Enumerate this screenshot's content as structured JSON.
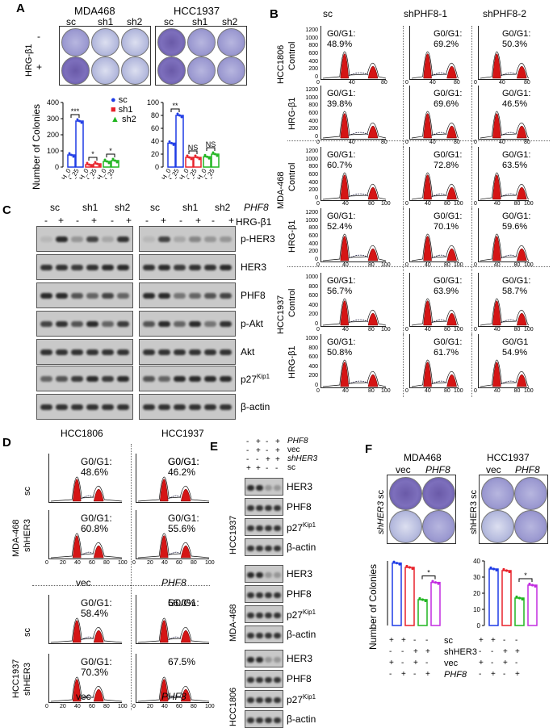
{
  "panels": {
    "A": "A",
    "B": "B",
    "C": "C",
    "D": "D",
    "E": "E",
    "F": "F"
  },
  "panelA": {
    "cell_lines": [
      "MDA468",
      "HCC1937"
    ],
    "columns": [
      "sc",
      "sh1",
      "sh2"
    ],
    "row_label": "HRG-β1",
    "row_signs": [
      "-",
      "+"
    ],
    "ylabel": "Number of Colonies",
    "legend": [
      "sc",
      "sh1",
      "sh2"
    ],
    "xticks": [
      "H_0",
      "H_25"
    ],
    "sig_left": [
      "***",
      "*",
      "*"
    ],
    "sig_right": [
      "**",
      "NS",
      "NS"
    ],
    "yticks_left": [
      "0",
      "100",
      "200",
      "300",
      "400"
    ],
    "yticks_right": [
      "0",
      "20",
      "40",
      "60",
      "80",
      "100"
    ],
    "colors": {
      "sc": "#1f3ce6",
      "sh1": "#e8222b",
      "sh2": "#21b521"
    }
  },
  "chart_data": [
    {
      "type": "bar",
      "title": "MDA468",
      "ylabel": "Number of Colonies",
      "ylim": [
        0,
        400
      ],
      "categories": [
        "H_0",
        "H_25"
      ],
      "series": [
        {
          "name": "sc",
          "values": [
            75,
            285
          ]
        },
        {
          "name": "sh1",
          "values": [
            15,
            20
          ]
        },
        {
          "name": "sh2",
          "values": [
            35,
            40
          ]
        }
      ]
    },
    {
      "type": "bar",
      "title": "HCC1937",
      "ylim": [
        0,
        100
      ],
      "categories": [
        "H_0",
        "H_25"
      ],
      "series": [
        {
          "name": "sc",
          "values": [
            37,
            80
          ]
        },
        {
          "name": "sh1",
          "values": [
            15,
            15
          ]
        },
        {
          "name": "sh2",
          "values": [
            16,
            20
          ]
        }
      ]
    },
    {
      "type": "bar",
      "title": "MDA468",
      "ylabel": "Number of Colonies",
      "ylim": [
        0,
        300
      ],
      "categories": [
        "sc vec",
        "sc PHF8",
        "shHER3 vec",
        "shHER3 PHF8"
      ],
      "values": [
        290,
        270,
        120,
        200
      ]
    },
    {
      "type": "bar",
      "title": "HCC1937",
      "ylim": [
        0,
        40
      ],
      "categories": [
        "sc vec",
        "sc PHF8",
        "shHER3 vec",
        "shHER3 PHF8"
      ],
      "values": [
        35,
        34,
        17,
        25
      ]
    }
  ],
  "panelB": {
    "cols": [
      "sc",
      "shPHF8-1",
      "shPHF8-2"
    ],
    "groups": [
      "HCC1806",
      "MDA-468",
      "HCC1937"
    ],
    "row_labels": [
      "Control",
      "HRG-β1"
    ],
    "values": [
      [
        "G0/G1:\n48.9%",
        "G0/G1:\n69.2%",
        "G0/G1:\n50.3%"
      ],
      [
        "G0/G1:\n39.8%",
        "G0/G1:\n69.6%",
        "G0/G1:\n46.5%"
      ],
      [
        "G0/G1:\n60.7%",
        "G0/G1:\n72.8%",
        "G0/G1:\n63.5%"
      ],
      [
        "G0/G1:\n52.4%",
        "G0/G1:\n70.1%",
        "G0/G1:\n59.6%"
      ],
      [
        "G0/G1:\n56.7%",
        "G0/G1:\n63.9%",
        "G0/G1:\n58.7%"
      ],
      [
        "G0/G1:\n50.8%",
        "G0/G1:\n61.7%",
        "G0/G1\n54.9%"
      ]
    ],
    "yticks_a": [
      "0",
      "200",
      "400",
      "600",
      "800",
      "1000",
      "1200"
    ],
    "xticks_a": [
      "0",
      "20",
      "40",
      "60",
      "80"
    ],
    "xticks_b": [
      "0",
      "20",
      "40",
      "60",
      "80",
      "100"
    ]
  },
  "panelC": {
    "cols": [
      "sc",
      "sh1",
      "sh2",
      "sc",
      "sh1",
      "sh2"
    ],
    "gene": "PHF8",
    "treat": "HRG-β1",
    "signs": [
      "-",
      "+",
      "-",
      "+",
      "-",
      "+"
    ],
    "proteins": [
      "p-HER3",
      "HER3",
      "PHF8",
      "p-Akt",
      "Akt",
      "p27Kip1",
      "β-actin"
    ],
    "cells": [
      "HCC1806",
      "HCC1937"
    ]
  },
  "panelD": {
    "groups": [
      "MDA-468",
      "HCC1937"
    ],
    "rows": [
      "sc",
      "shHER3"
    ],
    "cols": [
      "vec",
      "PHF8"
    ],
    "values": [
      "G0/G1:\n48.6%",
      "G0/G1:\n46.2%",
      "G0/G1:\n60.8%",
      "G0/G1:\n55.6%",
      "G0/G1:\n58.4%",
      "56.0%",
      "G0/G1:\n70.3%",
      "67.5%"
    ],
    "g0_extra": [
      "",
      "G0/G1:",
      "",
      "",
      "",
      " G0/G1:",
      "",
      ""
    ],
    "xticks": [
      "0",
      "20",
      "40",
      "60",
      "80",
      "100"
    ]
  },
  "panelE": {
    "rows": [
      "PHF8",
      "vec",
      "shHER3",
      "sc"
    ],
    "signs": [
      [
        "-",
        "+",
        "-",
        "+"
      ],
      [
        "-",
        "+",
        "-",
        "+"
      ],
      [
        "-",
        "-",
        "+",
        "+"
      ],
      [
        "+",
        "+",
        "-",
        "-"
      ]
    ],
    "groups": [
      "HCC1937",
      "MDA-468",
      "HCC1806"
    ],
    "proteins": [
      "HER3",
      "PHF8",
      "p27Kip1",
      "β-actin"
    ]
  },
  "panelF": {
    "cells": [
      "MDA468",
      "HCC1937"
    ],
    "cols": [
      "vec",
      "PHF8"
    ],
    "rows": [
      "sc",
      "shHER3"
    ],
    "ylabel": "Number of Colonies",
    "row_labels": [
      "sc",
      "shHER3",
      "vec",
      "PHF8"
    ],
    "signs": [
      [
        "+",
        "+",
        "-",
        "-"
      ],
      [
        "-",
        "-",
        "+",
        "+"
      ],
      [
        "+",
        "-",
        "+",
        "-"
      ],
      [
        "-",
        "+",
        "-",
        "+"
      ]
    ],
    "sig": [
      "*",
      "*"
    ],
    "yticks_right": [
      "0",
      "10",
      "20",
      "30",
      "40"
    ]
  }
}
